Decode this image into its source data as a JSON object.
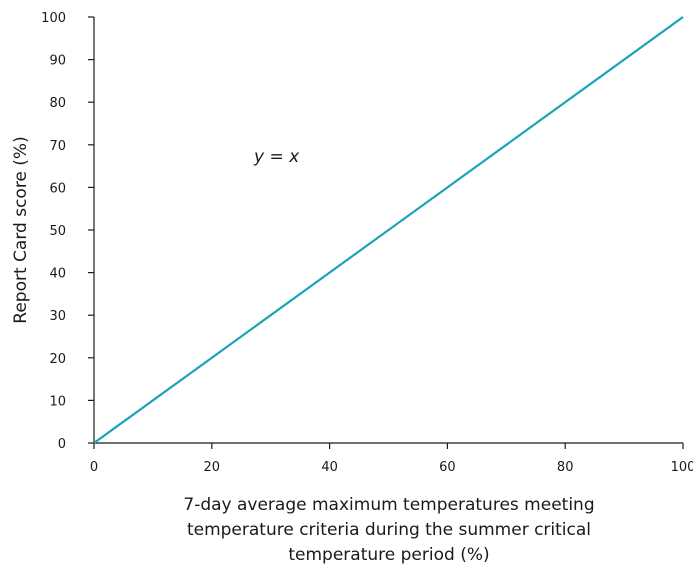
{
  "chart_data": {
    "type": "line",
    "title": "",
    "xlabel_lines": [
      "7-day average maximum temperatures meeting",
      "temperature criteria during the summer critical",
      "temperature period (%)"
    ],
    "ylabel": "Report Card score (%)",
    "xlim": [
      0,
      100
    ],
    "ylim": [
      0,
      100
    ],
    "x_ticks": [
      0,
      20,
      40,
      60,
      80,
      100
    ],
    "y_ticks": [
      0,
      10,
      20,
      30,
      40,
      50,
      60,
      70,
      80,
      90,
      100
    ],
    "grid": false,
    "series": [
      {
        "color": "#1aa3b8",
        "x": [
          0,
          100
        ],
        "y": [
          0,
          100
        ]
      }
    ],
    "annotations": [
      {
        "text": "y = x",
        "x": 31,
        "y": 66
      }
    ]
  }
}
